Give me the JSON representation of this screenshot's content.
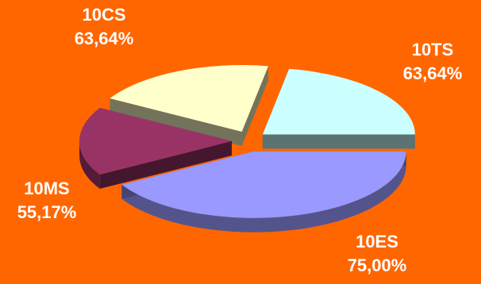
{
  "chart_data": {
    "type": "pie",
    "title": "",
    "three_d": true,
    "exploded": true,
    "background_color": "#FF6600",
    "label_color": "#FFFFFF",
    "slices": [
      {
        "name": "10TS",
        "value_label": "63,64%",
        "value": 63.64,
        "color": "#CCFFFF"
      },
      {
        "name": "10ES",
        "value_label": "75,00%",
        "value": 75.0,
        "color": "#9999FF"
      },
      {
        "name": "10MS",
        "value_label": "55,17%",
        "value": 55.17,
        "color": "#993366"
      },
      {
        "name": "10CS",
        "value_label": "63,64%",
        "value": 63.64,
        "color": "#FFFFCC"
      }
    ]
  }
}
